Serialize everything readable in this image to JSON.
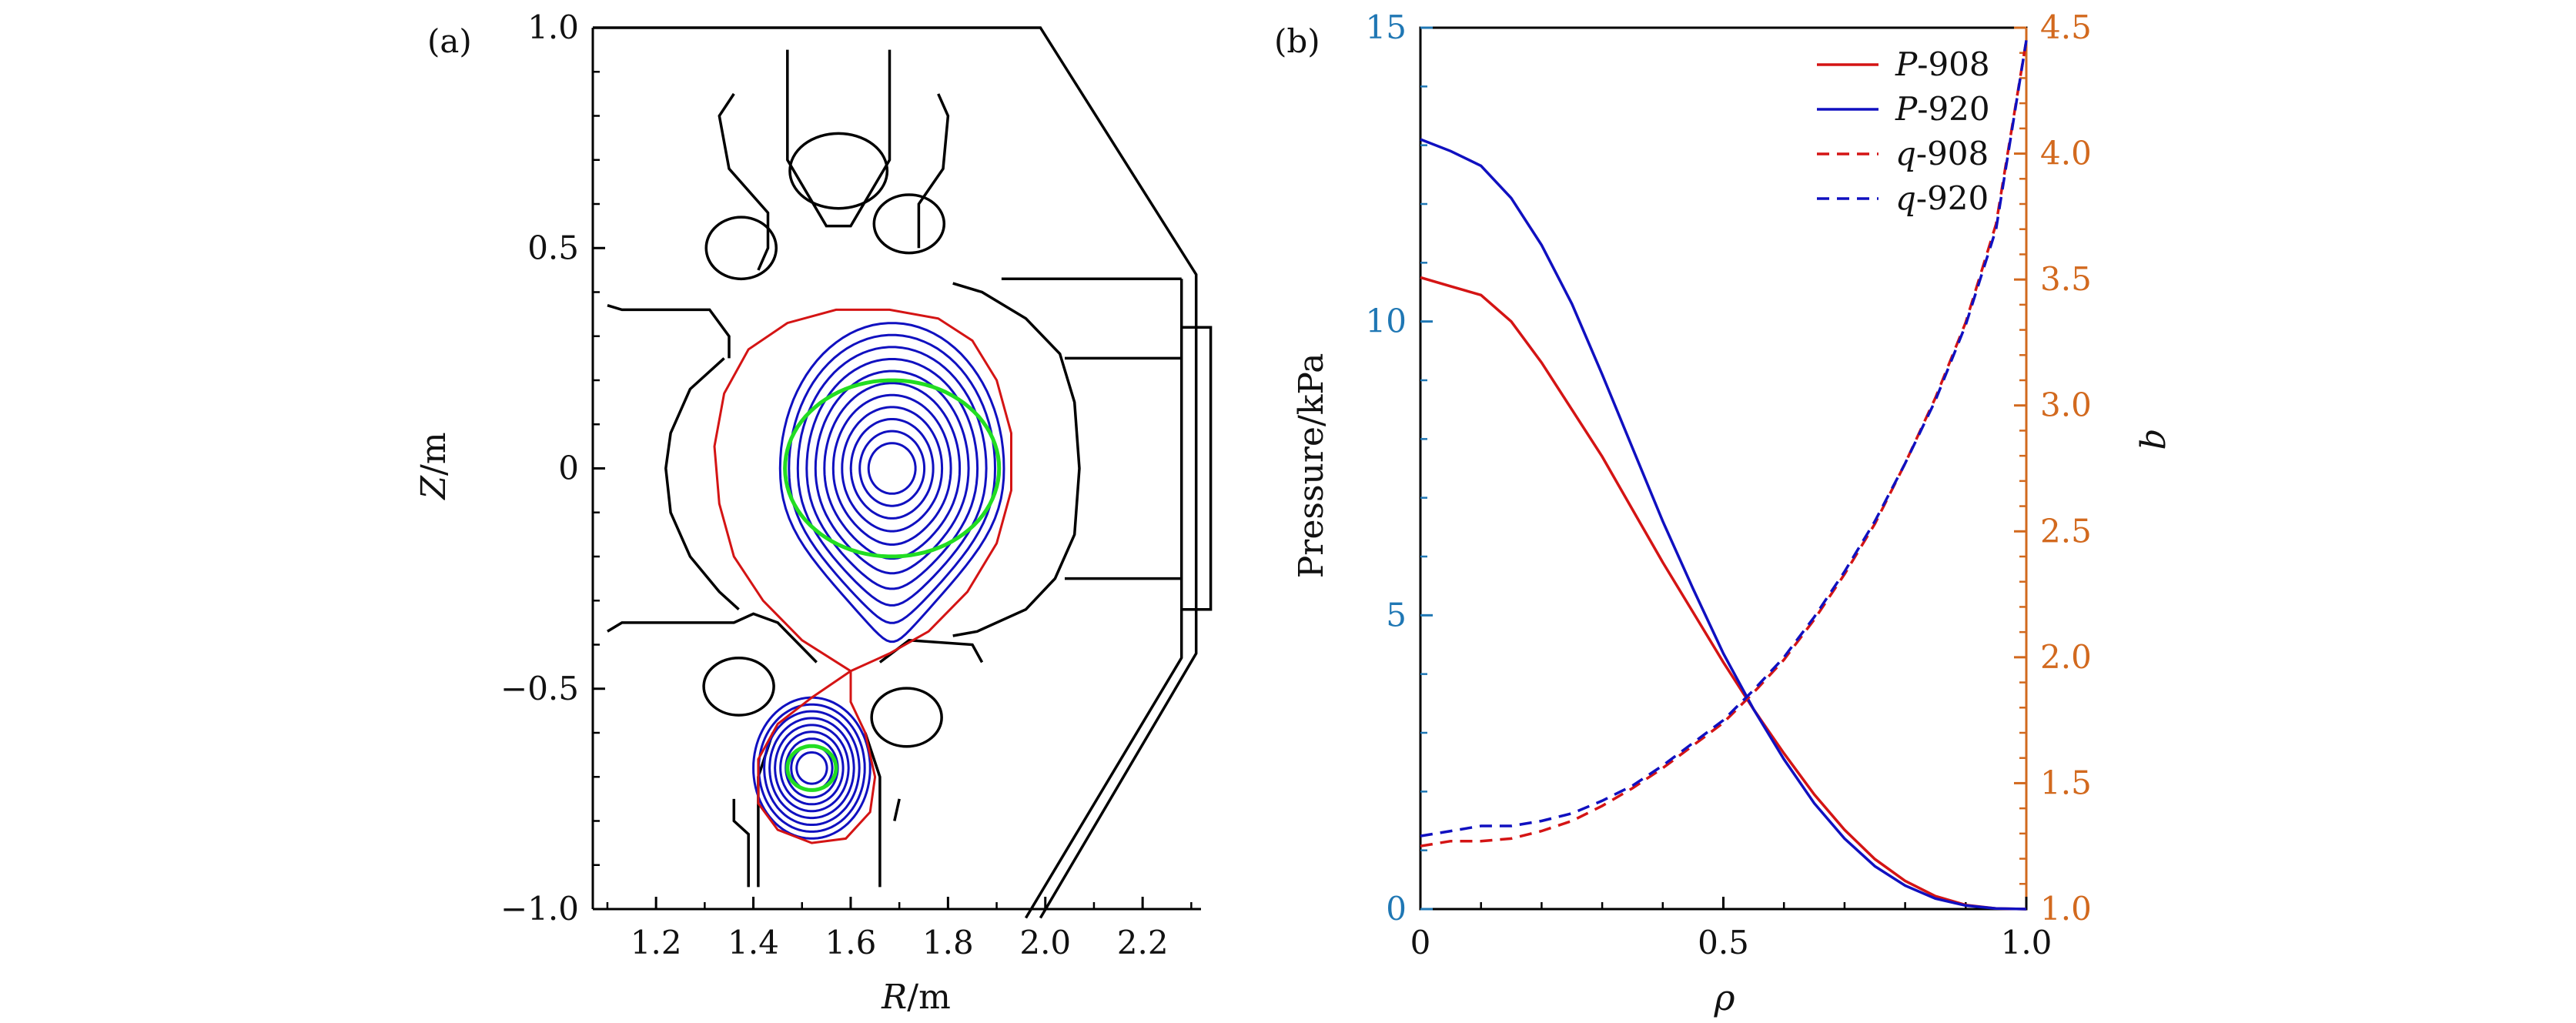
{
  "chart_data": [
    {
      "panel_label": "(a)",
      "type": "line",
      "xlabel_var": "R",
      "xlabel_unit": "/m",
      "ylabel_var": "Z",
      "ylabel_unit": "/m",
      "xlim": [
        1.07,
        2.32
      ],
      "ylim": [
        -1.0,
        1.0
      ],
      "x_ticks": [
        1.2,
        1.4,
        1.6,
        1.8,
        2.0,
        2.2
      ],
      "y_ticks": [
        1.0,
        0.5,
        0,
        -0.5,
        -1.0
      ],
      "x_tick_labels": [
        "1.2",
        "1.4",
        "1.6",
        "1.8",
        "2.0",
        "2.2"
      ],
      "y_tick_labels": [
        "1.0",
        "0.5",
        "0",
        "−0.5",
        "−1.0"
      ],
      "colors": {
        "wall": "#000000",
        "flux": "#1010c0",
        "separatrix": "#d41414",
        "surface": "#22dd22"
      },
      "main_plasma": {
        "center": [
          1.685,
          0.0
        ],
        "n_flux_surfaces": 11
      },
      "lower_plasma": {
        "center": [
          1.52,
          -0.68
        ],
        "n_flux_surfaces": 9
      },
      "x_point": [
        1.6,
        -0.46
      ],
      "coils": [
        {
          "center": [
            1.575,
            0.675
          ],
          "radii": [
            0.1,
            0.085
          ]
        },
        {
          "center": [
            1.375,
            0.5
          ],
          "radii": [
            0.072,
            0.07
          ]
        },
        {
          "center": [
            1.72,
            0.555
          ],
          "radii": [
            0.072,
            0.066
          ]
        },
        {
          "center": [
            1.37,
            -0.495
          ],
          "radii": [
            0.072,
            0.065
          ]
        },
        {
          "center": [
            1.715,
            -0.565
          ],
          "radii": [
            0.072,
            0.066
          ]
        }
      ]
    },
    {
      "panel_label": "(b)",
      "type": "line",
      "xlabel": "ρ",
      "ylabel": "Pressure/kPa",
      "ylabel_right_var": "q",
      "xlim": [
        0,
        1.0
      ],
      "ylim": [
        0,
        15
      ],
      "ylim_right": [
        1.0,
        4.5
      ],
      "x_ticks": [
        0,
        0.5,
        1.0
      ],
      "x_tick_labels": [
        "0",
        "0.5",
        "1.0"
      ],
      "y_ticks": [
        0,
        5,
        10,
        15
      ],
      "y_tick_labels": [
        "0",
        "5",
        "10",
        "15"
      ],
      "y_right_ticks": [
        1.0,
        1.5,
        2.0,
        2.5,
        3.0,
        3.5,
        4.0,
        4.5
      ],
      "y_right_tick_labels": [
        "1.0",
        "1.5",
        "2.0",
        "2.5",
        "3.0",
        "3.5",
        "4.0",
        "4.5"
      ],
      "left_axis_color": "#1f77b4",
      "right_axis_color": "#d2691e",
      "legend_position": "top-right",
      "x": [
        0,
        0.05,
        0.1,
        0.15,
        0.2,
        0.25,
        0.3,
        0.35,
        0.4,
        0.45,
        0.5,
        0.55,
        0.6,
        0.65,
        0.7,
        0.75,
        0.8,
        0.85,
        0.9,
        0.95,
        1.0
      ],
      "series": [
        {
          "name_var": "P",
          "name_num": "-908",
          "axis": "left",
          "color": "#d41414",
          "dash": false,
          "values": [
            10.75,
            10.6,
            10.45,
            10.0,
            9.3,
            8.5,
            7.7,
            6.8,
            5.9,
            5.05,
            4.2,
            3.4,
            2.65,
            1.95,
            1.35,
            0.85,
            0.48,
            0.22,
            0.07,
            0.01,
            0.0
          ]
        },
        {
          "name_var": "P",
          "name_num": "-920",
          "axis": "left",
          "color": "#1010c0",
          "dash": false,
          "values": [
            13.1,
            12.9,
            12.65,
            12.1,
            11.3,
            10.3,
            9.1,
            7.85,
            6.6,
            5.45,
            4.35,
            3.4,
            2.55,
            1.8,
            1.2,
            0.73,
            0.4,
            0.18,
            0.06,
            0.01,
            0.0
          ]
        },
        {
          "name_var": "q",
          "name_num": "-908",
          "axis": "right",
          "color": "#d41414",
          "dash": true,
          "values": [
            1.25,
            1.27,
            1.27,
            1.28,
            1.31,
            1.35,
            1.41,
            1.48,
            1.56,
            1.65,
            1.74,
            1.86,
            1.99,
            2.15,
            2.33,
            2.53,
            2.77,
            3.03,
            3.33,
            3.72,
            4.45
          ]
        },
        {
          "name_var": "q",
          "name_num": "-920",
          "axis": "right",
          "color": "#1010c0",
          "dash": true,
          "values": [
            1.29,
            1.31,
            1.33,
            1.33,
            1.35,
            1.38,
            1.43,
            1.49,
            1.57,
            1.66,
            1.75,
            1.87,
            2.0,
            2.16,
            2.34,
            2.54,
            2.77,
            3.02,
            3.32,
            3.7,
            4.45
          ]
        }
      ]
    }
  ]
}
